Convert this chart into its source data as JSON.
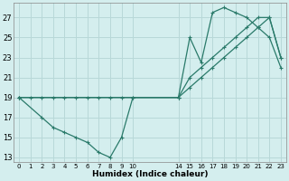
{
  "xlabel": "Humidex (Indice chaleur)",
  "background_color": "#d4eeee",
  "grid_color": "#b8d8d8",
  "line_color": "#2a7a6a",
  "series1_x": [
    0,
    1,
    2,
    3,
    4,
    5,
    6,
    7,
    8,
    9,
    10,
    14,
    15,
    16,
    17,
    18,
    19,
    20,
    21,
    22,
    23
  ],
  "series1_y": [
    19,
    19,
    19,
    19,
    19,
    19,
    19,
    19,
    19,
    19,
    19,
    19,
    21,
    22,
    23,
    24,
    25,
    26,
    27,
    27,
    23
  ],
  "series2_x": [
    0,
    2,
    3,
    4,
    5,
    6,
    7,
    8,
    9,
    10,
    14,
    15,
    16,
    17,
    18,
    19,
    20,
    21,
    22,
    23
  ],
  "series2_y": [
    19,
    17,
    16,
    15.5,
    15,
    14.5,
    13.5,
    13,
    15,
    19,
    19,
    25,
    22.5,
    27.5,
    28,
    27.5,
    27,
    26,
    25,
    22
  ],
  "series3_x": [
    0,
    14,
    15,
    16,
    17,
    18,
    19,
    20,
    21,
    22,
    23
  ],
  "series3_y": [
    19,
    19,
    20,
    21,
    22,
    23,
    24,
    25,
    26,
    27,
    23
  ],
  "xtick_labels": [
    "0",
    "1",
    "2",
    "3",
    "4",
    "5",
    "6",
    "7",
    "8",
    "9",
    "10",
    "",
    "",
    "",
    "14",
    "15",
    "16",
    "17",
    "18",
    "19",
    "20",
    "21",
    "22",
    "23"
  ],
  "yticks": [
    13,
    15,
    17,
    19,
    21,
    23,
    25,
    27
  ],
  "xlim": [
    -0.5,
    23.5
  ],
  "ylim": [
    12.5,
    28.5
  ]
}
